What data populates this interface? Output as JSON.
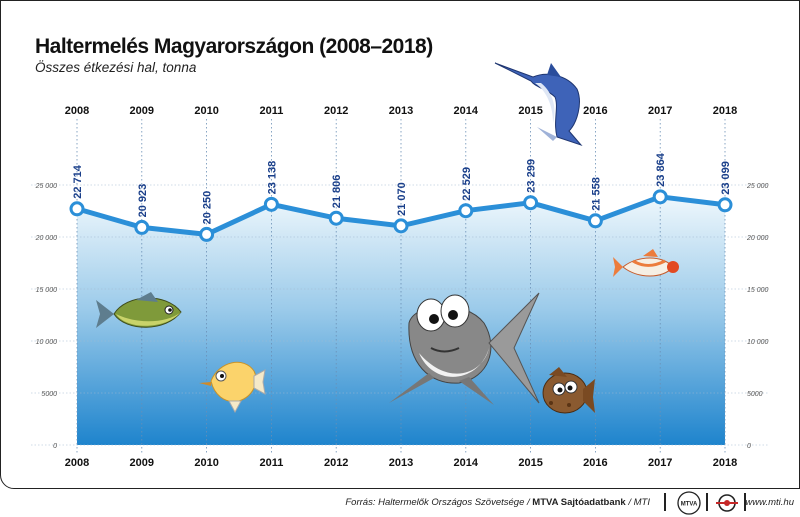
{
  "title": "Haltermelés Magyarországon (2008–2018)",
  "subtitle": "Összes étkezési hal, tonna",
  "chart_data": {
    "type": "line",
    "categories": [
      "2008",
      "2009",
      "2010",
      "2011",
      "2012",
      "2013",
      "2014",
      "2015",
      "2016",
      "2017",
      "2018"
    ],
    "values": [
      22714,
      20923,
      20250,
      23138,
      21806,
      21070,
      22529,
      23299,
      21558,
      23864,
      23099
    ],
    "value_labels": [
      "22 714",
      "20 923",
      "20 250",
      "23 138",
      "21 806",
      "21 070",
      "22 529",
      "23 299",
      "21 558",
      "23 864",
      "23 099"
    ],
    "yticks": [
      0,
      5000,
      10000,
      15000,
      20000,
      25000
    ],
    "ytick_labels": [
      "0",
      "5000",
      "10 000",
      "15 000",
      "20 000",
      "25 000"
    ],
    "ylim": [
      0,
      25000
    ],
    "grid": true,
    "colors": {
      "line": "#2b8fd8",
      "label": "#1a3f8a",
      "water_top": "#e9f4fb",
      "water_bottom": "#1f86cf"
    }
  },
  "footer": {
    "source_prefix": "Forrás: Haltermelők Országos Szövetsége / ",
    "source_bold": "MTVA Sajtóadatbank",
    "source_suffix": " / MTI",
    "site": "www.mti.hu",
    "logo_text": "MTVA"
  },
  "icons": [
    "marlin-icon",
    "green-fish-icon",
    "angelfish-icon",
    "cartoon-fish-icon",
    "brown-fish-icon",
    "orange-fish-icon"
  ]
}
